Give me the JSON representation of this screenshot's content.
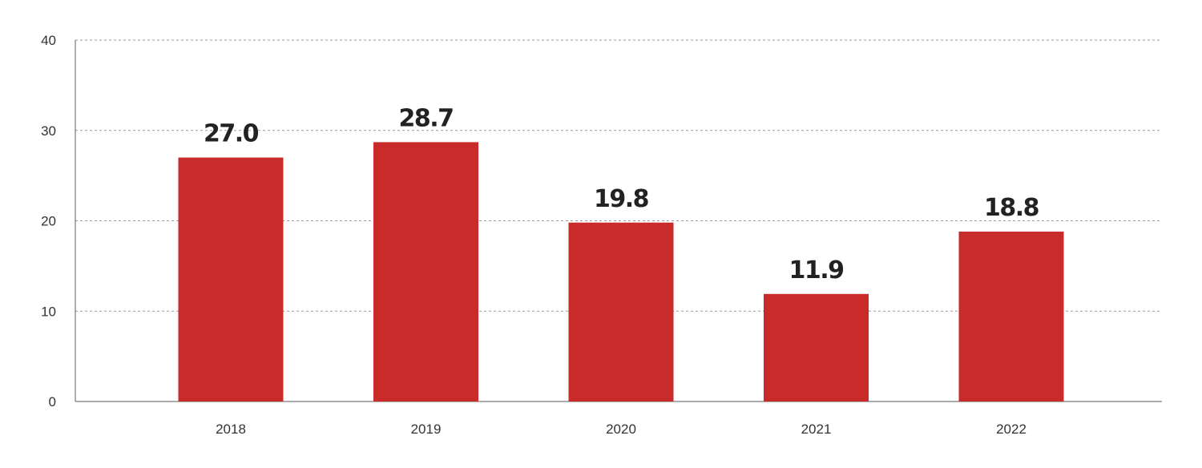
{
  "chart_data": {
    "type": "bar",
    "categories": [
      "2018",
      "2019",
      "2020",
      "2021",
      "2022"
    ],
    "values": [
      27.0,
      28.7,
      19.8,
      11.9,
      18.8
    ],
    "data_labels": [
      "27.0",
      "28.7",
      "19.8",
      "11.9",
      "18.8"
    ],
    "y_ticks": [
      "0",
      "10",
      "20",
      "30",
      "40"
    ],
    "ylim": [
      0,
      40
    ],
    "grid": true,
    "legend": "none",
    "bar_color": "#c92a2a",
    "title": "",
    "xlabel": "",
    "ylabel": ""
  }
}
